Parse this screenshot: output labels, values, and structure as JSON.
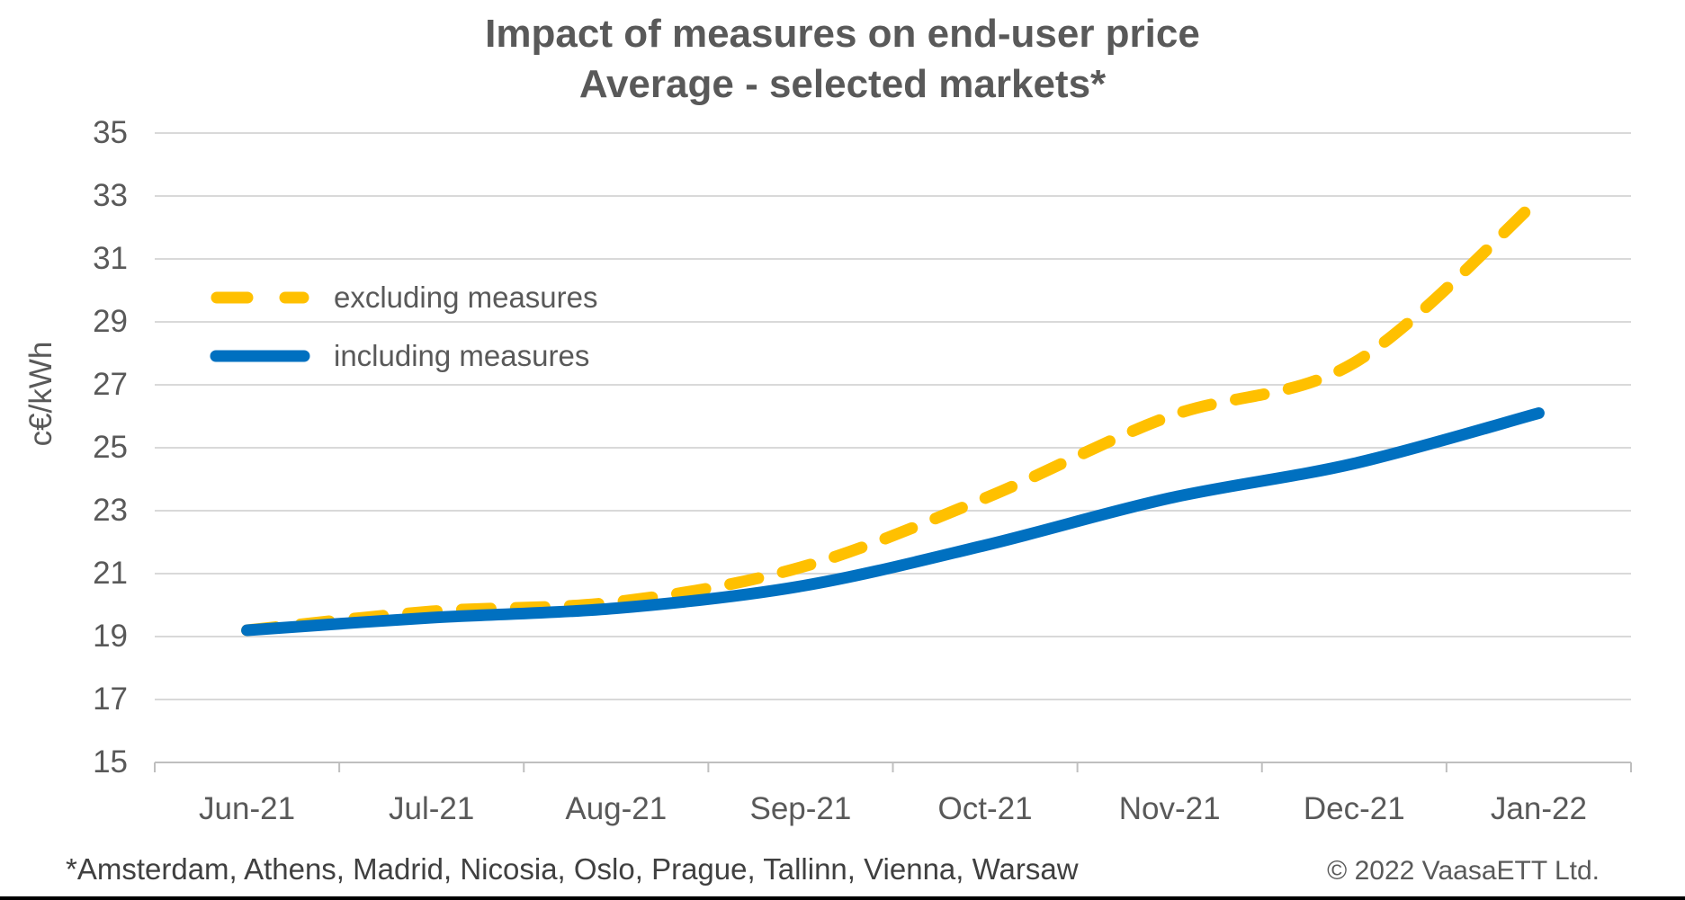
{
  "title": {
    "line1": "Impact of measures on end-user price",
    "line2": "Average - selected markets*"
  },
  "footnote": "*Amsterdam, Athens, Madrid, Nicosia, Oslo, Prague, Tallinn, Vienna, Warsaw",
  "copyright": "© 2022 VaasaETT Ltd.",
  "colors": {
    "excluding_line": "#FFC000",
    "including_line": "#0070C0",
    "gridline": "#D9D9D9",
    "axis_line": "#BFBFBF",
    "text": "#595959",
    "footnote_text": "#404040"
  },
  "chart_data": {
    "type": "line",
    "title": "Impact of measures on end-user price",
    "subtitle": "Average - selected markets*",
    "xlabel": "",
    "ylabel": "c€/kWh",
    "categories": [
      "Jun-21",
      "Jul-21",
      "Aug-21",
      "Sep-21",
      "Oct-21",
      "Nov-21",
      "Dec-21",
      "Jan-22"
    ],
    "series": [
      {
        "name": "excluding measures",
        "color": "#FFC000",
        "line_style": "dashed",
        "values": [
          19.2,
          19.8,
          20.1,
          21.2,
          23.4,
          26.0,
          27.7,
          32.9
        ]
      },
      {
        "name": "including measures",
        "color": "#0070C0",
        "line_style": "solid",
        "values": [
          19.2,
          19.6,
          19.9,
          20.6,
          21.9,
          23.4,
          24.5,
          26.1
        ]
      }
    ],
    "ylim": [
      15,
      35
    ],
    "ytick_step": 2,
    "yticks": [
      15,
      17,
      19,
      21,
      23,
      25,
      27,
      29,
      31,
      33,
      35
    ],
    "grid": true,
    "legend_position": "inside-upper-left"
  }
}
